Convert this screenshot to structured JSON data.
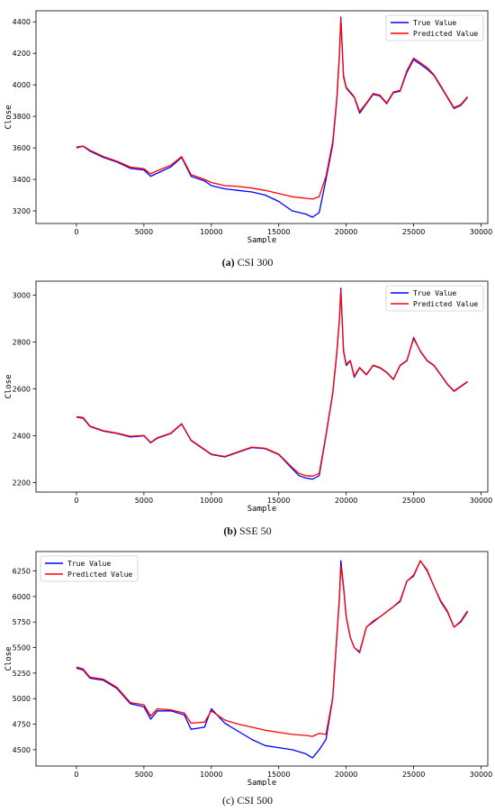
{
  "colors": {
    "true": "#0000ff",
    "pred": "#ff0000",
    "axis": "#000000"
  },
  "chart_data": [
    {
      "type": "line",
      "caption_letter": "(a)",
      "caption_text": "CSI 300",
      "xlabel": "Sample",
      "ylabel": "Close",
      "xlim": [
        -3000,
        30500
      ],
      "ylim": [
        3120,
        4470
      ],
      "xticks": [
        0,
        5000,
        10000,
        15000,
        20000,
        25000,
        30000
      ],
      "xtick_labels": [
        "0",
        "5000",
        "10000",
        "15000",
        "20000",
        "25000",
        "30000"
      ],
      "yticks": [
        3200,
        3400,
        3600,
        3800,
        4000,
        4200,
        4400
      ],
      "ytick_labels": [
        "3200",
        "3400",
        "3600",
        "3800",
        "4000",
        "4200",
        "4400"
      ],
      "legend": {
        "position": "top-right",
        "entries": [
          "True Value",
          "Predicted Value"
        ]
      },
      "series": [
        {
          "name": "True Value",
          "color": "#0000ff",
          "x": [
            0,
            500,
            1000,
            2000,
            3000,
            4000,
            5000,
            5500,
            6000,
            7000,
            7800,
            8500,
            9500,
            10000,
            11000,
            12000,
            13000,
            14000,
            15000,
            16000,
            17000,
            17500,
            18000,
            18500,
            19000,
            19300,
            19500,
            19600,
            19800,
            20000,
            20300,
            20600,
            21000,
            21500,
            22000,
            22500,
            23000,
            23500,
            24000,
            24500,
            25000,
            25500,
            26000,
            26500,
            27000,
            27500,
            28000,
            28500,
            29000
          ],
          "y": [
            3600,
            3610,
            3580,
            3540,
            3510,
            3470,
            3460,
            3420,
            3440,
            3480,
            3540,
            3420,
            3390,
            3360,
            3340,
            3330,
            3320,
            3300,
            3260,
            3200,
            3180,
            3160,
            3190,
            3400,
            3620,
            3900,
            4200,
            4430,
            4050,
            3980,
            3950,
            3920,
            3820,
            3880,
            3940,
            3930,
            3880,
            3950,
            3960,
            4080,
            4160,
            4130,
            4100,
            4060,
            3990,
            3920,
            3850,
            3870,
            3920
          ]
        },
        {
          "name": "Predicted Value",
          "color": "#ff0000",
          "x": [
            0,
            500,
            1000,
            2000,
            3000,
            4000,
            5000,
            5500,
            6000,
            7000,
            7800,
            8500,
            9500,
            10000,
            11000,
            12000,
            13000,
            14000,
            15000,
            16000,
            17000,
            17500,
            18000,
            18500,
            19000,
            19300,
            19500,
            19600,
            19800,
            20000,
            20300,
            20600,
            21000,
            21500,
            22000,
            22500,
            23000,
            23500,
            24000,
            24500,
            25000,
            25500,
            26000,
            26500,
            27000,
            27500,
            28000,
            28500,
            29000
          ],
          "y": [
            3605,
            3612,
            3585,
            3545,
            3515,
            3478,
            3468,
            3435,
            3455,
            3490,
            3545,
            3430,
            3400,
            3380,
            3360,
            3355,
            3345,
            3330,
            3310,
            3290,
            3280,
            3275,
            3290,
            3420,
            3640,
            3910,
            4200,
            4420,
            4060,
            3985,
            3955,
            3925,
            3830,
            3885,
            3945,
            3935,
            3885,
            3955,
            3965,
            4090,
            4170,
            4140,
            4110,
            4065,
            3995,
            3925,
            3855,
            3875,
            3925
          ]
        }
      ]
    },
    {
      "type": "line",
      "caption_letter": "(b)",
      "caption_text": "SSE 50",
      "xlabel": "Sample",
      "ylabel": "Close",
      "xlim": [
        -3000,
        30500
      ],
      "ylim": [
        2160,
        3060
      ],
      "xticks": [
        0,
        5000,
        10000,
        15000,
        20000,
        25000,
        30000
      ],
      "xtick_labels": [
        "0",
        "5000",
        "10000",
        "15000",
        "20000",
        "25000",
        "30000"
      ],
      "yticks": [
        2200,
        2400,
        2600,
        2800,
        3000
      ],
      "ytick_labels": [
        "2200",
        "2400",
        "2600",
        "2800",
        "3000"
      ],
      "legend": {
        "position": "top-right",
        "entries": [
          "True Value",
          "Predicted Value"
        ]
      },
      "series": [
        {
          "name": "True Value",
          "color": "#0000ff",
          "x": [
            0,
            500,
            1000,
            2000,
            3000,
            4000,
            5000,
            5500,
            6000,
            7000,
            7800,
            8500,
            9500,
            10000,
            11000,
            12000,
            13000,
            14000,
            15000,
            16000,
            16500,
            17000,
            17500,
            18000,
            18500,
            19000,
            19300,
            19500,
            19600,
            19800,
            20000,
            20300,
            20600,
            21000,
            21500,
            22000,
            22500,
            23000,
            23500,
            24000,
            24500,
            25000,
            25500,
            26000,
            26500,
            27000,
            27500,
            28000,
            28500,
            29000
          ],
          "y": [
            2480,
            2475,
            2440,
            2420,
            2410,
            2395,
            2400,
            2370,
            2390,
            2410,
            2450,
            2380,
            2340,
            2320,
            2310,
            2330,
            2350,
            2345,
            2320,
            2260,
            2230,
            2220,
            2215,
            2230,
            2400,
            2580,
            2750,
            2900,
            3030,
            2760,
            2700,
            2720,
            2650,
            2690,
            2660,
            2700,
            2690,
            2670,
            2640,
            2700,
            2720,
            2820,
            2760,
            2720,
            2700,
            2660,
            2620,
            2590,
            2610,
            2630
          ]
        },
        {
          "name": "Predicted Value",
          "color": "#ff0000",
          "x": [
            0,
            500,
            1000,
            2000,
            3000,
            4000,
            5000,
            5500,
            6000,
            7000,
            7800,
            8500,
            9500,
            10000,
            11000,
            12000,
            13000,
            14000,
            15000,
            16000,
            16500,
            17000,
            17500,
            18000,
            18500,
            19000,
            19300,
            19500,
            19600,
            19800,
            20000,
            20300,
            20600,
            21000,
            21500,
            22000,
            22500,
            23000,
            23500,
            24000,
            24500,
            25000,
            25500,
            26000,
            26500,
            27000,
            27500,
            28000,
            28500,
            29000
          ],
          "y": [
            2482,
            2478,
            2442,
            2422,
            2412,
            2398,
            2402,
            2372,
            2392,
            2412,
            2452,
            2382,
            2342,
            2322,
            2312,
            2332,
            2352,
            2347,
            2322,
            2265,
            2240,
            2230,
            2228,
            2240,
            2405,
            2585,
            2755,
            2900,
            3020,
            2765,
            2705,
            2722,
            2655,
            2692,
            2662,
            2702,
            2692,
            2672,
            2642,
            2702,
            2722,
            2815,
            2762,
            2722,
            2702,
            2662,
            2622,
            2592,
            2612,
            2632
          ]
        }
      ]
    },
    {
      "type": "line",
      "caption_letter": "(c)",
      "caption_text": "CSI 500",
      "xlabel": "Sample",
      "ylabel": "Close",
      "xlim": [
        -3000,
        30500
      ],
      "ylim": [
        4340,
        6440
      ],
      "xticks": [
        0,
        5000,
        10000,
        15000,
        20000,
        25000,
        30000
      ],
      "xtick_labels": [
        "0",
        "5000",
        "10000",
        "15000",
        "20000",
        "25000",
        "30000"
      ],
      "yticks": [
        4500,
        4750,
        5000,
        5250,
        5500,
        5750,
        6000,
        6250
      ],
      "ytick_labels": [
        "4500",
        "4750",
        "5000",
        "5250",
        "5500",
        "5750",
        "6000",
        "6250"
      ],
      "legend": {
        "position": "top-left",
        "entries": [
          "True Value",
          "Predicted Value"
        ]
      },
      "series": [
        {
          "name": "True Value",
          "color": "#0000ff",
          "x": [
            0,
            500,
            1000,
            2000,
            3000,
            4000,
            5000,
            5500,
            6000,
            7000,
            8000,
            8500,
            9500,
            10000,
            11000,
            12000,
            13000,
            14000,
            15000,
            16000,
            17000,
            17500,
            18000,
            18500,
            19000,
            19300,
            19500,
            19600,
            19800,
            20000,
            20300,
            20600,
            21000,
            21500,
            22000,
            22500,
            23000,
            23500,
            24000,
            24500,
            25000,
            25500,
            26000,
            26500,
            27000,
            27500,
            28000,
            28500,
            29000
          ],
          "y": [
            5300,
            5280,
            5200,
            5180,
            5100,
            4950,
            4920,
            4800,
            4880,
            4880,
            4840,
            4700,
            4720,
            4900,
            4760,
            4680,
            4600,
            4540,
            4520,
            4500,
            4460,
            4420,
            4500,
            4600,
            5000,
            5600,
            6000,
            6350,
            6100,
            5800,
            5600,
            5500,
            5450,
            5700,
            5750,
            5800,
            5850,
            5900,
            5950,
            6150,
            6200,
            6350,
            6250,
            6100,
            5950,
            5850,
            5700,
            5750,
            5850
          ]
        },
        {
          "name": "Predicted Value",
          "color": "#ff0000",
          "x": [
            0,
            500,
            1000,
            2000,
            3000,
            4000,
            5000,
            5500,
            6000,
            7000,
            8000,
            8500,
            9500,
            10000,
            11000,
            12000,
            13000,
            14000,
            15000,
            16000,
            17000,
            17500,
            18000,
            18500,
            19000,
            19300,
            19500,
            19600,
            19800,
            20000,
            20300,
            20600,
            21000,
            21500,
            22000,
            22500,
            23000,
            23500,
            24000,
            24500,
            25000,
            25500,
            26000,
            26500,
            27000,
            27500,
            28000,
            28500,
            29000
          ],
          "y": [
            5310,
            5290,
            5210,
            5190,
            5110,
            4960,
            4940,
            4830,
            4900,
            4890,
            4860,
            4760,
            4770,
            4880,
            4790,
            4750,
            4720,
            4690,
            4670,
            4650,
            4640,
            4630,
            4660,
            4650,
            5010,
            5600,
            6000,
            6300,
            6090,
            5800,
            5600,
            5500,
            5460,
            5700,
            5760,
            5800,
            5850,
            5900,
            5960,
            6150,
            6210,
            6350,
            6260,
            6100,
            5960,
            5860,
            5700,
            5760,
            5860
          ]
        }
      ]
    }
  ]
}
